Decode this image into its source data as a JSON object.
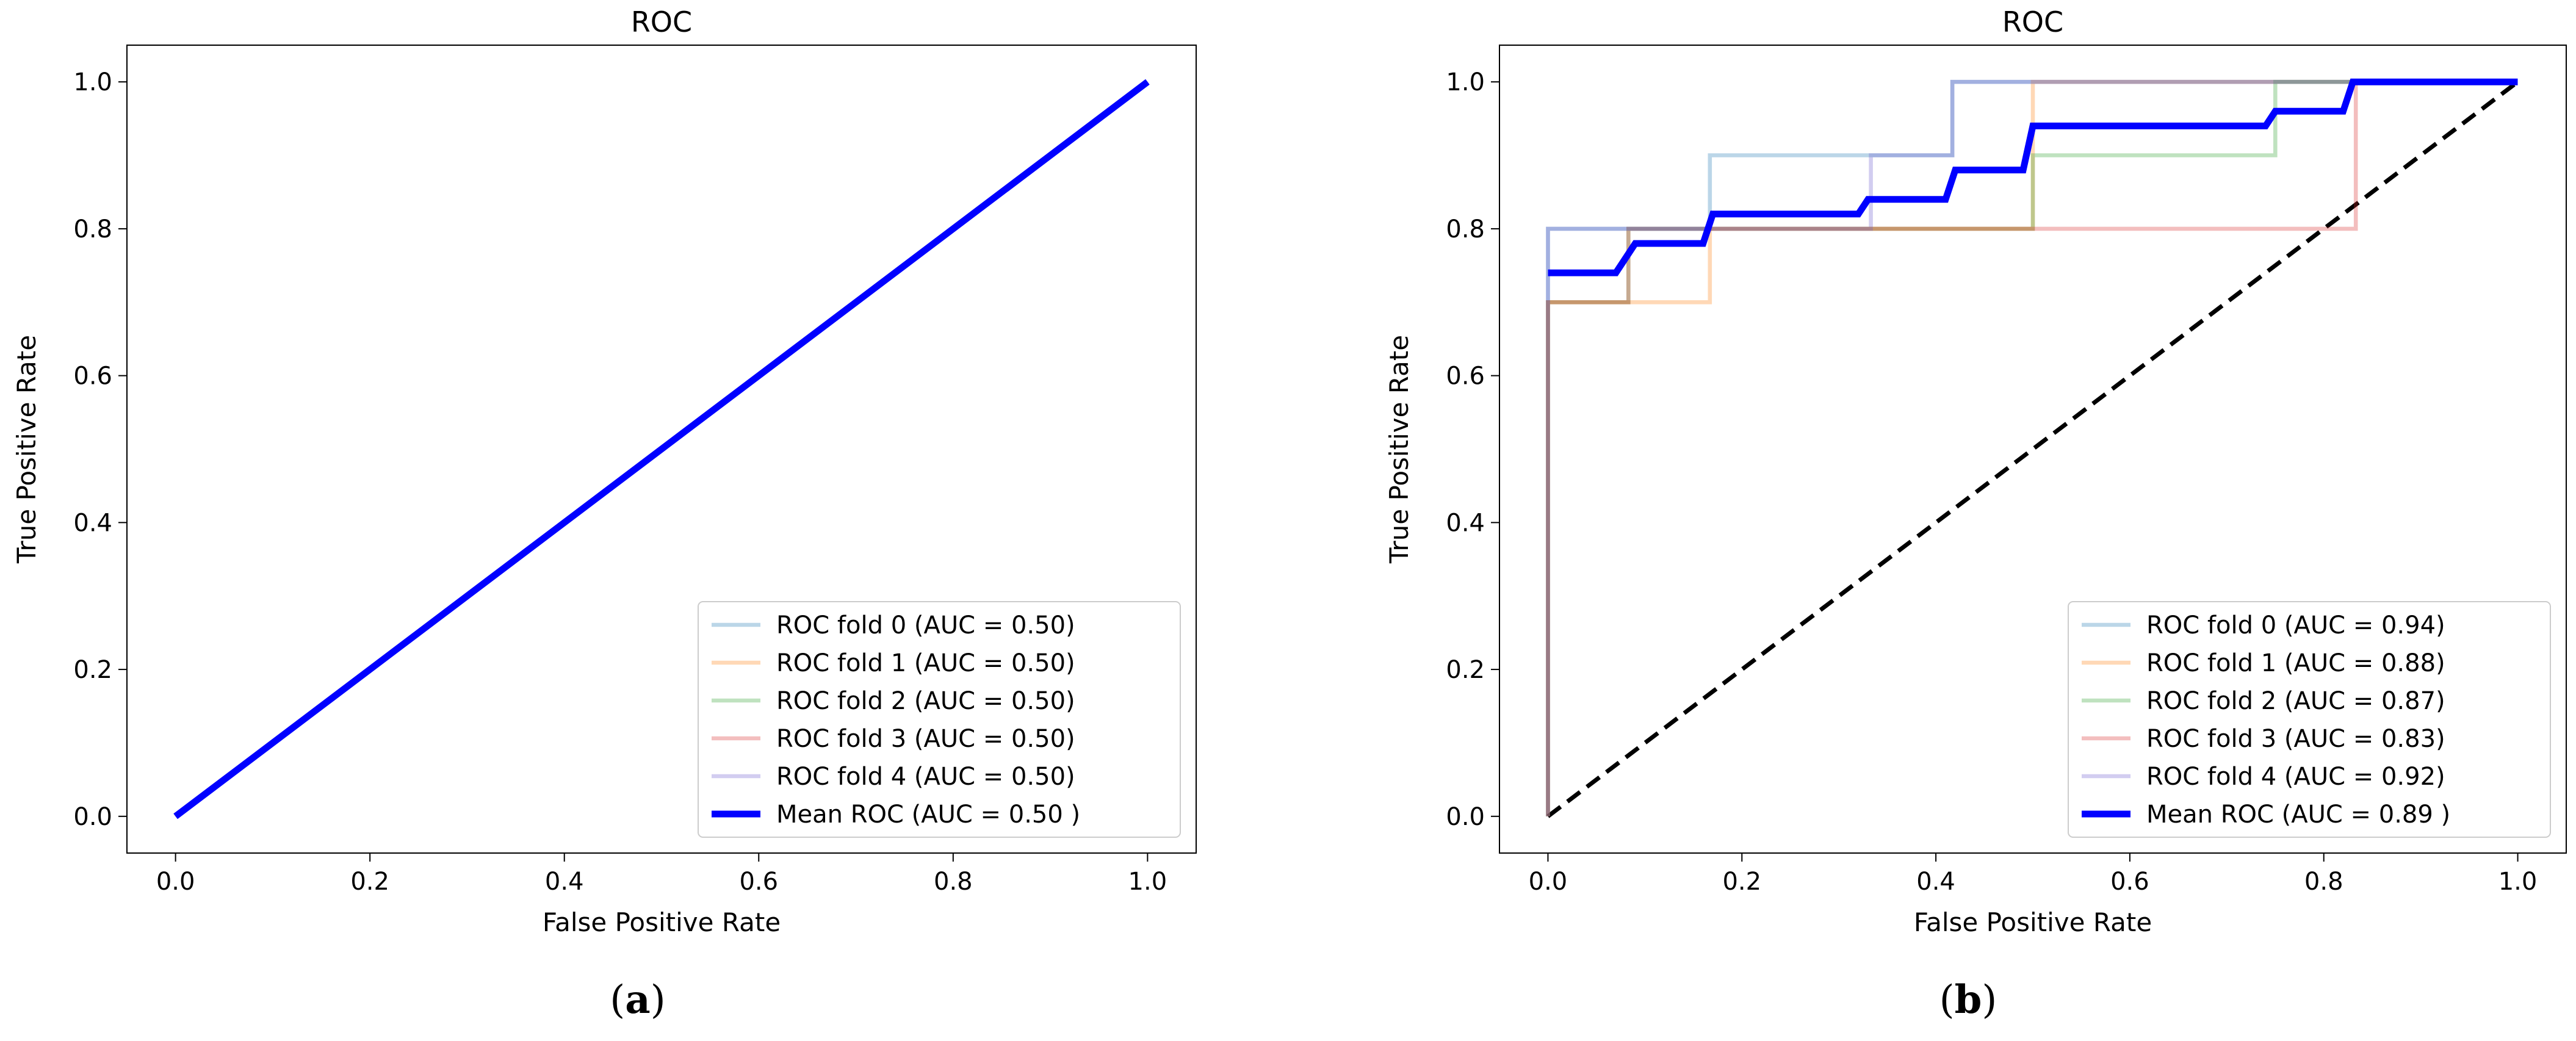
{
  "chart_data": [
    {
      "type": "line",
      "panel": "a",
      "title": "ROC",
      "xlabel": "False Positive Rate",
      "ylabel": "True Positive Rate",
      "xlim": [
        -0.05,
        1.05
      ],
      "ylim": [
        -0.05,
        1.05
      ],
      "xticks": [
        "0.0",
        "0.2",
        "0.4",
        "0.6",
        "0.8",
        "1.0"
      ],
      "yticks": [
        "0.0",
        "0.2",
        "0.4",
        "0.6",
        "0.8",
        "1.0"
      ],
      "legend_position": "lower-right",
      "caption": {
        "open": "(",
        "letter": "a",
        "close": ")"
      },
      "chance_line": false,
      "series": [
        {
          "name": "ROC fold 0 (AUC = 0.50)",
          "color": "#1f77b4",
          "opacity": 0.3,
          "width": 3,
          "x": [
            0,
            1
          ],
          "y": [
            0,
            1
          ]
        },
        {
          "name": "ROC fold 1 (AUC = 0.50)",
          "color": "#ff7f0e",
          "opacity": 0.3,
          "width": 3,
          "x": [
            0,
            1
          ],
          "y": [
            0,
            1
          ]
        },
        {
          "name": "ROC fold 2 (AUC = 0.50)",
          "color": "#2ca02c",
          "opacity": 0.3,
          "width": 3,
          "x": [
            0,
            1
          ],
          "y": [
            0,
            1
          ]
        },
        {
          "name": "ROC fold 3 (AUC = 0.50)",
          "color": "#d62728",
          "opacity": 0.3,
          "width": 3,
          "x": [
            0,
            1
          ],
          "y": [
            0,
            1
          ]
        },
        {
          "name": "ROC fold 4 (AUC = 0.50)",
          "color": "#6a5acd",
          "opacity": 0.3,
          "width": 3,
          "x": [
            0,
            1
          ],
          "y": [
            0,
            1
          ]
        },
        {
          "name": "Mean ROC (AUC = 0.50 )",
          "color": "#0000ff",
          "opacity": 1,
          "width": 5,
          "x": [
            0,
            1
          ],
          "y": [
            0,
            1
          ]
        }
      ]
    },
    {
      "type": "line",
      "panel": "b",
      "title": "ROC",
      "xlabel": "False Positive Rate",
      "ylabel": "True Positive Rate",
      "xlim": [
        -0.05,
        1.05
      ],
      "ylim": [
        -0.05,
        1.05
      ],
      "xticks": [
        "0.0",
        "0.2",
        "0.4",
        "0.6",
        "0.8",
        "1.0"
      ],
      "yticks": [
        "0.0",
        "0.2",
        "0.4",
        "0.6",
        "0.8",
        "1.0"
      ],
      "legend_position": "lower-right",
      "caption": {
        "open": "(",
        "letter": "b",
        "close": ")"
      },
      "chance_line": true,
      "series": [
        {
          "name": "ROC fold 0 (AUC = 0.94)",
          "color": "#1f77b4",
          "opacity": 0.3,
          "width": 3,
          "x": [
            0,
            0,
            0.167,
            0.167,
            0.333,
            0.333,
            0.417,
            0.417,
            1
          ],
          "y": [
            0,
            0.8,
            0.8,
            0.9,
            0.9,
            0.9,
            0.9,
            1.0,
            1.0
          ]
        },
        {
          "name": "ROC fold 1 (AUC = 0.88)",
          "color": "#ff7f0e",
          "opacity": 0.3,
          "width": 3,
          "x": [
            0,
            0,
            0.167,
            0.167,
            0.5,
            0.5,
            1
          ],
          "y": [
            0,
            0.7,
            0.7,
            0.8,
            0.8,
            1.0,
            1.0
          ]
        },
        {
          "name": "ROC fold 2 (AUC = 0.87)",
          "color": "#2ca02c",
          "opacity": 0.3,
          "width": 3,
          "x": [
            0,
            0,
            0.083,
            0.083,
            0.5,
            0.5,
            0.75,
            0.75,
            1
          ],
          "y": [
            0,
            0.7,
            0.7,
            0.8,
            0.8,
            0.9,
            0.9,
            1.0,
            1.0
          ]
        },
        {
          "name": "ROC fold 3 (AUC = 0.83)",
          "color": "#d62728",
          "opacity": 0.3,
          "width": 3,
          "x": [
            0,
            0,
            0.083,
            0.083,
            0.833,
            0.833,
            1
          ],
          "y": [
            0,
            0.7,
            0.7,
            0.8,
            0.8,
            1.0,
            1.0
          ]
        },
        {
          "name": "ROC fold 4 (AUC = 0.92)",
          "color": "#6a5acd",
          "opacity": 0.3,
          "width": 3,
          "x": [
            0,
            0,
            0.333,
            0.333,
            0.417,
            0.417,
            1
          ],
          "y": [
            0,
            0.8,
            0.8,
            0.9,
            0.9,
            1.0,
            1.0
          ]
        },
        {
          "name": "Mean ROC (AUC = 0.89 )",
          "color": "#0000ff",
          "opacity": 1,
          "width": 5,
          "x": [
            0,
            0.07,
            0.09,
            0.16,
            0.17,
            0.32,
            0.33,
            0.41,
            0.42,
            0.49,
            0.5,
            0.74,
            0.75,
            0.82,
            0.83,
            1.0
          ],
          "y": [
            0.74,
            0.74,
            0.78,
            0.78,
            0.82,
            0.82,
            0.84,
            0.84,
            0.88,
            0.88,
            0.94,
            0.94,
            0.96,
            0.96,
            1.0,
            1.0
          ]
        }
      ]
    }
  ]
}
